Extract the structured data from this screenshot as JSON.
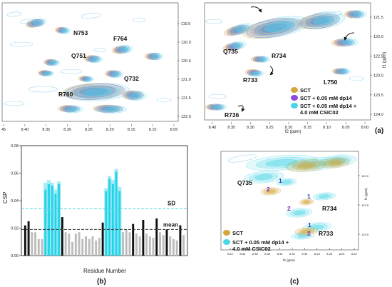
{
  "colors": {
    "sct": "#d4a73a",
    "dp14": "#8a4be0",
    "csic02": "#4ad6e8",
    "contour_pale": "#9fd8f0",
    "bar_black": "#111111",
    "bar_gray": "#bdbdbd",
    "bar_cyan": "#27d3e8",
    "sd_line": "#5ad6e6"
  },
  "panels": {
    "a_label": "(a)",
    "b_label": "(b)",
    "c_label": "(c)"
  },
  "spectrum_a_left": {
    "x_ticks": [
      "45",
      "8.40",
      "8.35",
      "8.30",
      "8.25",
      "8.20",
      "8.15",
      "8.10",
      "8.05"
    ],
    "y_ticks": [
      "119.5",
      "120.0",
      "120.5",
      "121.0",
      "121.5",
      "122.0"
    ],
    "peaks": [
      "N753",
      "F764",
      "Q751",
      "Q732",
      "R760"
    ]
  },
  "spectrum_a_right": {
    "x_ticks": [
      "8.40",
      "8.35",
      "8.30",
      "8.25",
      "8.20",
      "8.15",
      "8.10",
      "8.05",
      "8.00"
    ],
    "y_ticks": [
      "121.5",
      "122.0",
      "122.5",
      "123.0",
      "123.5",
      "124.0"
    ],
    "xlabel": "f2 (ppm)",
    "ylabel": "f1 (ppm)",
    "peaks": [
      "Q735",
      "R734",
      "R733",
      "L750",
      "R736"
    ],
    "legend": [
      "SCT",
      "SCT + 0.05 mM dp14",
      "SCT + 0.05 mM dp14 +",
      "4.0 mM CSIC02"
    ]
  },
  "spectrum_c": {
    "x_ticks": [
      "8.42",
      "8.40",
      "8.38",
      "8.36",
      "8.34",
      "8.32",
      "8.30",
      "8.28",
      "8.26",
      "8.24",
      "8.22"
    ],
    "y_ticks": [
      "122.0",
      "122.5",
      "123.0"
    ],
    "xlabel": "f2 (ppm)",
    "ylabel": "f1 (ppm)",
    "peaks": [
      "Q735",
      "R734",
      "R733"
    ],
    "peak_markers": [
      "1",
      "2"
    ],
    "legend": [
      "SCT",
      "SCT + 0.05 mM dp14 +",
      "4.0 mM CSIC02"
    ]
  },
  "chart_data": {
    "type": "bar",
    "title": "",
    "ylabel": "CSP",
    "xlabel": "Residue Number",
    "ylim": [
      0,
      0.08
    ],
    "y_ticks": [
      "0.00",
      "0.02",
      "0.04",
      "0.06",
      "0.08"
    ],
    "annotations": [
      "SD",
      "mean"
    ],
    "mean_value": 0.019,
    "sd_value": 0.034,
    "values": [
      0.022,
      0.025,
      0.017,
      0.017,
      0.012,
      0.012,
      0.048,
      0.052,
      0.051,
      0.045,
      0.052,
      0.028,
      0.017,
      0.016,
      0.01,
      0.016,
      0.017,
      0.012,
      0.014,
      0.012,
      0.014,
      0.011,
      0.013,
      0.024,
      0.047,
      0.056,
      0.052,
      0.061,
      0.047,
      0.017,
      0.019,
      0.017,
      0.023,
      0.016,
      0.014,
      0.026,
      0.016,
      0.014,
      0.013,
      0.027,
      0.017,
      0.015,
      0.019,
      0.014,
      0.012,
      0.011,
      0.022,
      0.015
    ],
    "highlight_values": [
      0,
      0,
      0,
      0,
      0,
      0,
      0.053,
      0.055,
      0.053,
      0.048,
      0.054,
      0,
      0,
      0,
      0,
      0,
      0,
      0,
      0,
      0,
      0,
      0,
      0,
      0,
      0.049,
      0.058,
      0.055,
      0.063,
      0.05,
      0,
      0,
      0,
      0,
      0,
      0,
      0,
      0,
      0,
      0,
      0,
      0,
      0,
      0,
      0,
      0,
      0,
      0,
      0
    ],
    "bar_styles": [
      "black",
      "black",
      "gray",
      "gray",
      "gray",
      "gray",
      "cyan",
      "cyan",
      "cyan",
      "cyan",
      "cyan",
      "black",
      "gray",
      "gray",
      "gray",
      "gray",
      "gray",
      "gray",
      "gray",
      "gray",
      "gray",
      "gray",
      "gray",
      "black",
      "cyan",
      "cyan",
      "cyan",
      "cyan",
      "cyan",
      "gray",
      "gray",
      "gray",
      "black",
      "gray",
      "gray",
      "black",
      "gray",
      "gray",
      "gray",
      "black",
      "gray",
      "gray",
      "black",
      "gray",
      "gray",
      "gray",
      "black",
      "gray"
    ],
    "grid": false,
    "legend": "none"
  }
}
